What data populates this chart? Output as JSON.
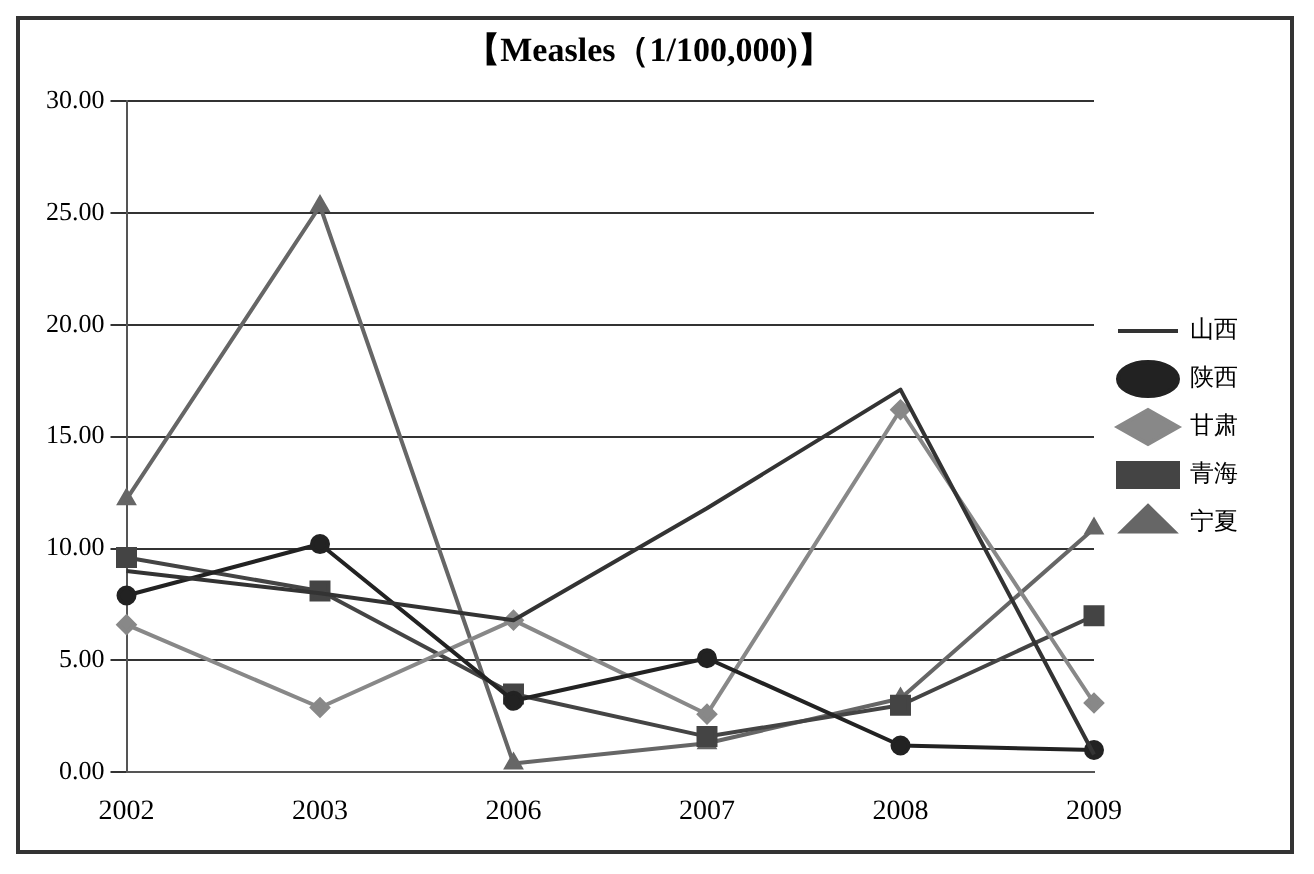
{
  "chart_data": {
    "type": "line",
    "title": "【Measles（1/100,000)】",
    "categories": [
      "2002",
      "2003",
      "2006",
      "2007",
      "2008",
      "2009"
    ],
    "series": [
      {
        "name": "山西",
        "color": "#333333",
        "marker": "none",
        "values": [
          9.0,
          8.0,
          6.8,
          11.8,
          17.1,
          0.8
        ]
      },
      {
        "name": "陕西",
        "color": "#222222",
        "marker": "circle",
        "values": [
          7.9,
          10.2,
          3.2,
          5.1,
          1.2,
          1.0
        ]
      },
      {
        "name": "甘肃",
        "color": "#888888",
        "marker": "diamond",
        "values": [
          6.6,
          2.9,
          6.8,
          2.6,
          16.2,
          3.1
        ]
      },
      {
        "name": "青海",
        "color": "#444444",
        "marker": "square",
        "values": [
          9.6,
          8.1,
          3.5,
          1.6,
          3.0,
          7.0
        ]
      },
      {
        "name": "宁夏",
        "color": "#666666",
        "marker": "triangle",
        "values": [
          12.2,
          25.3,
          0.4,
          1.3,
          3.3,
          10.9
        ]
      }
    ],
    "ylim": [
      0,
      30
    ],
    "yticks": [
      {
        "value": 0,
        "label": "0.00"
      },
      {
        "value": 5,
        "label": "5.00"
      },
      {
        "value": 10,
        "label": "10.00"
      },
      {
        "value": 15,
        "label": "15.00"
      },
      {
        "value": 20,
        "label": "20.00"
      },
      {
        "value": 25,
        "label": "25.00"
      },
      {
        "value": 30,
        "label": "30.00"
      }
    ],
    "grid": "y",
    "legend": "right",
    "line_style": "solid"
  }
}
